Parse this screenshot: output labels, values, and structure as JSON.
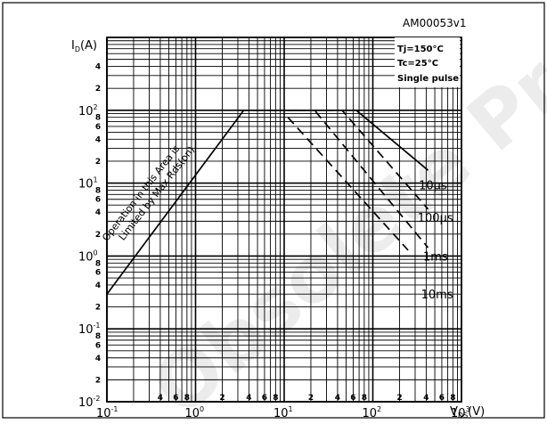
{
  "chart_data": {
    "type": "line",
    "title": "AM00053v1",
    "xlabel": "VDS(V)",
    "ylabel": "ID(A)",
    "xscale": "log",
    "yscale": "log",
    "xlim": [
      0.1,
      1000
    ],
    "ylim": [
      0.01,
      1000
    ],
    "grid": true,
    "x_major_ticks": [
      {
        "base": "10",
        "exp": "-1",
        "value": 0.1
      },
      {
        "base": "10",
        "exp": "0",
        "value": 1
      },
      {
        "base": "10",
        "exp": "1",
        "value": 10
      },
      {
        "base": "10",
        "exp": "2",
        "value": 100
      },
      {
        "base": "10",
        "exp": "3",
        "value": 1000
      }
    ],
    "y_major_ticks": [
      {
        "base": "10",
        "exp": "-2",
        "value": 0.01
      },
      {
        "base": "10",
        "exp": "-1",
        "value": 0.1
      },
      {
        "base": "10",
        "exp": "0",
        "value": 1
      },
      {
        "base": "10",
        "exp": "1",
        "value": 10
      },
      {
        "base": "10",
        "exp": "2",
        "value": 100
      }
    ],
    "minor_tick_labels": [
      "2",
      "4",
      "6",
      "8"
    ],
    "conditions": [
      "Tj=150°C",
      "Tc=25°C",
      "Single pulse"
    ],
    "region_label": [
      "Operation in this Area is",
      "Limited by Max Rds(on)"
    ],
    "series": [
      {
        "name": "10µs",
        "style": "solid",
        "x": [
          0.1,
          3.5,
          65,
          420
        ],
        "y": [
          0.3,
          100,
          100,
          15
        ]
      },
      {
        "name": "100µs",
        "style": "dashed",
        "x": [
          3.1,
          45,
          420
        ],
        "y": [
          100,
          100,
          4.4
        ]
      },
      {
        "name": "1ms",
        "style": "dashed",
        "x": [
          7.5,
          22,
          420
        ],
        "y": [
          100,
          100,
          1.3
        ]
      },
      {
        "name": "10ms",
        "style": "dashed",
        "x": [
          11,
          250
        ],
        "y": [
          80,
          1.2
        ]
      }
    ],
    "max_rds_line": {
      "x": [
        0.1,
        3.5
      ],
      "y": [
        0.3,
        100
      ]
    },
    "pulse_labels": [
      {
        "text": "10µs",
        "x": 330,
        "y": 9.5
      },
      {
        "text": "100µs",
        "x": 320,
        "y": 3.4
      },
      {
        "text": "1ms",
        "x": 370,
        "y": 1.0
      },
      {
        "text": "10ms",
        "x": 350,
        "y": 0.3
      }
    ]
  }
}
